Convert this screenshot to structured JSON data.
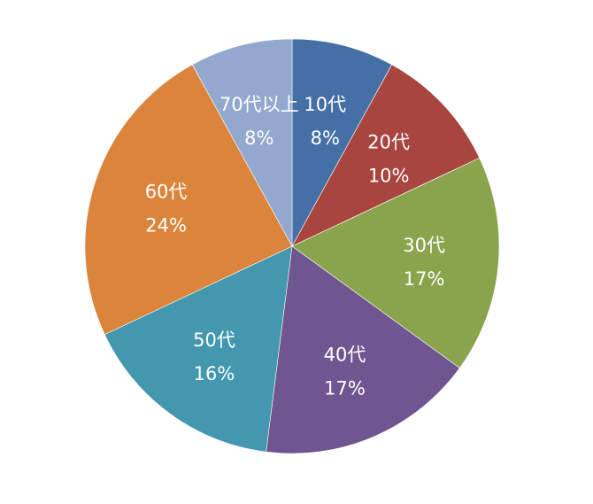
{
  "chart_data": {
    "type": "pie",
    "title": "",
    "start": "top",
    "direction": "clockwise",
    "categories": [
      "10代",
      "20代",
      "30代",
      "40代",
      "50代",
      "60代",
      "70代以上"
    ],
    "values": [
      8,
      10,
      17,
      17,
      16,
      24,
      8
    ],
    "value_labels": [
      "8%",
      "10%",
      "17%",
      "17%",
      "16%",
      "24%",
      "8%"
    ],
    "colors": [
      "#4470A5",
      "#A9453F",
      "#89A44D",
      "#705690",
      "#4397AE",
      "#DA843C",
      "#93A8CF"
    ],
    "legend": "none"
  }
}
